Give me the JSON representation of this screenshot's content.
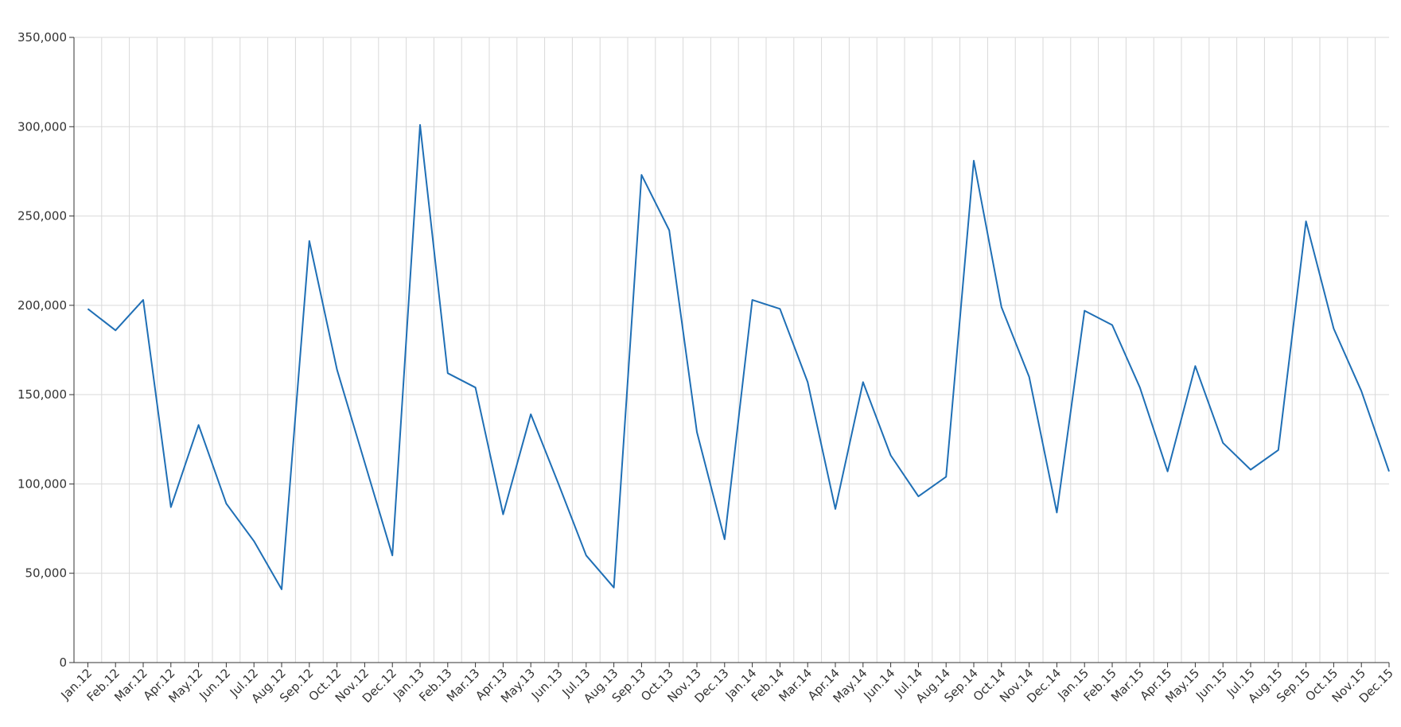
{
  "chart_data": {
    "type": "line",
    "title": "",
    "xlabel": "",
    "ylabel": "",
    "ylim": [
      0,
      350000
    ],
    "y_ticks": [
      0,
      50000,
      100000,
      150000,
      200000,
      250000,
      300000,
      350000
    ],
    "y_tick_labels": [
      "0",
      "50,000",
      "100,000",
      "150,000",
      "200,000",
      "250,000",
      "300,000",
      "350,000"
    ],
    "grid": true,
    "legend": "none",
    "line_color": "#1f6fb5",
    "categories": [
      "Jan.12",
      "Feb.12",
      "Mar.12",
      "Apr.12",
      "May.12",
      "Jun.12",
      "Jul.12",
      "Aug.12",
      "Sep.12",
      "Oct.12",
      "Nov.12",
      "Dec.12",
      "Jan.13",
      "Feb.13",
      "Mar.13",
      "Apr.13",
      "May.13",
      "Jun.13",
      "Jul.13",
      "Aug.13",
      "Sep.13",
      "Oct.13",
      "Nov.13",
      "Dec.13",
      "Jan.14",
      "Feb.14",
      "Mar.14",
      "Apr.14",
      "May.14",
      "Jun.14",
      "Jul.14",
      "Aug.14",
      "Sep.14",
      "Oct.14",
      "Nov.14",
      "Dec.14",
      "Jan.15",
      "Feb.15",
      "Mar.15",
      "Apr.15",
      "May.15",
      "Jun.15",
      "Jul.15",
      "Aug.15",
      "Sep.15",
      "Oct.15",
      "Nov.15",
      "Dec.15"
    ],
    "series": [
      {
        "values": [
          198000,
          186000,
          203000,
          87000,
          133000,
          89000,
          68000,
          41000,
          236000,
          164000,
          112000,
          60000,
          301000,
          162000,
          154000,
          83000,
          139000,
          100000,
          60000,
          42000,
          273000,
          242000,
          129000,
          69000,
          203000,
          198000,
          157000,
          86000,
          157000,
          116000,
          93000,
          104000,
          281000,
          199000,
          160000,
          84000,
          197000,
          189000,
          154000,
          107000,
          166000,
          123000,
          108000,
          119000,
          247000,
          187000,
          152000,
          107000
        ]
      }
    ]
  }
}
